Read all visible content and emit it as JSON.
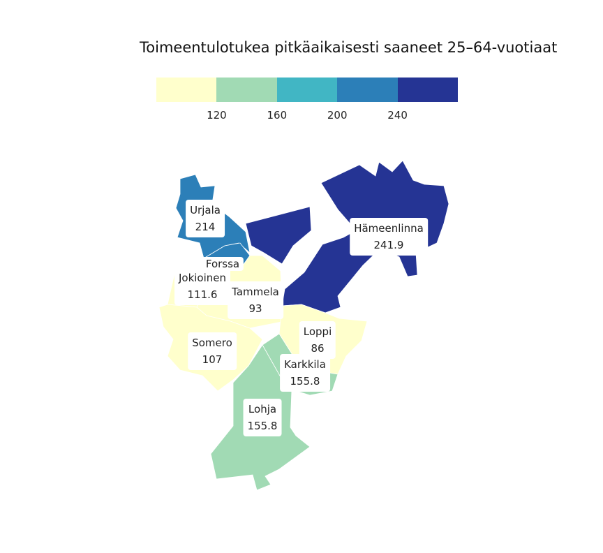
{
  "title": "Toimeentulotukea pitkäaikaisesti saaneet 25–64-vuotiaat",
  "legend": {
    "colors": [
      "#ffffcc",
      "#a1dab4",
      "#41b6c4",
      "#2c7fb8",
      "#253494"
    ],
    "ticks": [
      "120",
      "160",
      "200",
      "240"
    ]
  },
  "municipalities": [
    {
      "id": "urjala",
      "name": "Urjala",
      "value": "214",
      "color": "#2c7fb8"
    },
    {
      "id": "hameenlinna",
      "name": "Hämeenlinna",
      "value": "241.9",
      "color": "#253494"
    },
    {
      "id": "forssa",
      "name": "Forssa",
      "value": "",
      "color": "#2c7fb8"
    },
    {
      "id": "jokioinen",
      "name": "Jokioinen",
      "value": "111.6",
      "color": "#ffffcc"
    },
    {
      "id": "tammela",
      "name": "Tammela",
      "value": "93",
      "color": "#ffffcc"
    },
    {
      "id": "somero",
      "name": "Somero",
      "value": "107",
      "color": "#ffffcc"
    },
    {
      "id": "loppi",
      "name": "Loppi",
      "value": "86",
      "color": "#ffffcc"
    },
    {
      "id": "karkkila",
      "name": "Karkkila",
      "value": "155.8",
      "color": "#a1dab4"
    },
    {
      "id": "lohja",
      "name": "Lohja",
      "value": "155.8",
      "color": "#a1dab4"
    }
  ]
}
